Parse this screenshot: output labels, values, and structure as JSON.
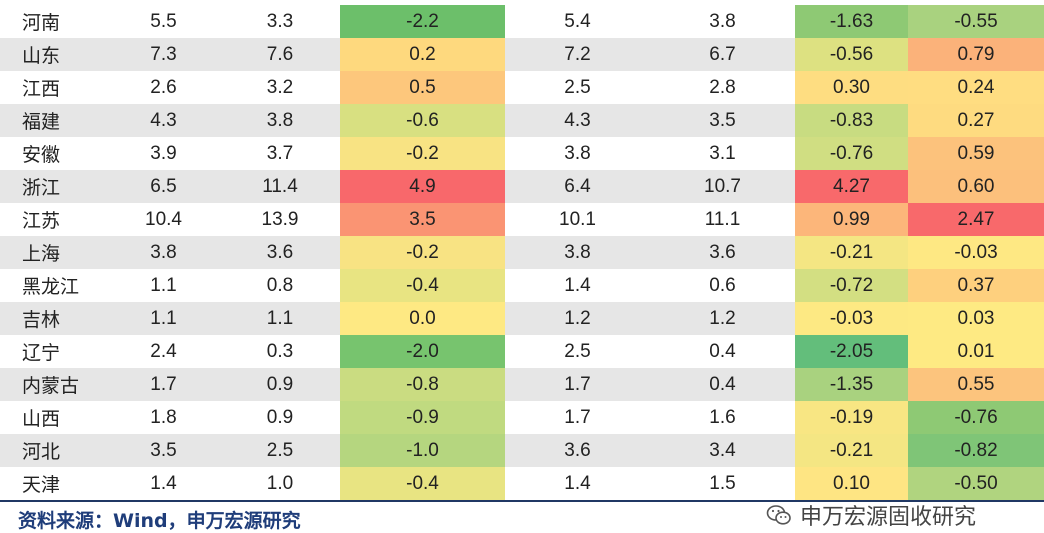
{
  "rows": [
    {
      "region": "河南",
      "c1": "5.5",
      "c2": "3.3",
      "c3": "-2.2",
      "c4": "5.4",
      "c5": "3.8",
      "c6": "-1.63",
      "c7": "-0.55"
    },
    {
      "region": "山东",
      "c1": "7.3",
      "c2": "7.6",
      "c3": "0.2",
      "c4": "7.2",
      "c5": "6.7",
      "c6": "-0.56",
      "c7": "0.79"
    },
    {
      "region": "江西",
      "c1": "2.6",
      "c2": "3.2",
      "c3": "0.5",
      "c4": "2.5",
      "c5": "2.8",
      "c6": "0.30",
      "c7": "0.24"
    },
    {
      "region": "福建",
      "c1": "4.3",
      "c2": "3.8",
      "c3": "-0.6",
      "c4": "4.3",
      "c5": "3.5",
      "c6": "-0.83",
      "c7": "0.27"
    },
    {
      "region": "安徽",
      "c1": "3.9",
      "c2": "3.7",
      "c3": "-0.2",
      "c4": "3.8",
      "c5": "3.1",
      "c6": "-0.76",
      "c7": "0.59"
    },
    {
      "region": "浙江",
      "c1": "6.5",
      "c2": "11.4",
      "c3": "4.9",
      "c4": "6.4",
      "c5": "10.7",
      "c6": "4.27",
      "c7": "0.60"
    },
    {
      "region": "江苏",
      "c1": "10.4",
      "c2": "13.9",
      "c3": "3.5",
      "c4": "10.1",
      "c5": "11.1",
      "c6": "0.99",
      "c7": "2.47"
    },
    {
      "region": "上海",
      "c1": "3.8",
      "c2": "3.6",
      "c3": "-0.2",
      "c4": "3.8",
      "c5": "3.6",
      "c6": "-0.21",
      "c7": "-0.03"
    },
    {
      "region": "黑龙江",
      "c1": "1.1",
      "c2": "0.8",
      "c3": "-0.4",
      "c4": "1.4",
      "c5": "0.6",
      "c6": "-0.72",
      "c7": "0.37"
    },
    {
      "region": "吉林",
      "c1": "1.1",
      "c2": "1.1",
      "c3": "0.0",
      "c4": "1.2",
      "c5": "1.2",
      "c6": "-0.03",
      "c7": "0.03"
    },
    {
      "region": "辽宁",
      "c1": "2.4",
      "c2": "0.3",
      "c3": "-2.0",
      "c4": "2.5",
      "c5": "0.4",
      "c6": "-2.05",
      "c7": "0.01"
    },
    {
      "region": "内蒙古",
      "c1": "1.7",
      "c2": "0.9",
      "c3": "-0.8",
      "c4": "1.7",
      "c5": "0.4",
      "c6": "-1.35",
      "c7": "0.55"
    },
    {
      "region": "山西",
      "c1": "1.8",
      "c2": "0.9",
      "c3": "-0.9",
      "c4": "1.7",
      "c5": "1.6",
      "c6": "-0.19",
      "c7": "-0.76"
    },
    {
      "region": "河北",
      "c1": "3.5",
      "c2": "2.5",
      "c3": "-1.0",
      "c4": "3.6",
      "c5": "3.4",
      "c6": "-0.21",
      "c7": "-0.82"
    },
    {
      "region": "天津",
      "c1": "1.4",
      "c2": "1.0",
      "c3": "-0.4",
      "c4": "1.4",
      "c5": "1.5",
      "c6": "0.10",
      "c7": "-0.50"
    }
  ],
  "heat_colors": {
    "c3": [
      "#6cbf6a",
      "#fed97e",
      "#fdc77c",
      "#d8e081",
      "#f8e383",
      "#f8686b",
      "#fa9473",
      "#f8e383",
      "#e8e482",
      "#fee983",
      "#77c46e",
      "#cadc81",
      "#c0da80",
      "#b5d67f",
      "#e8e482"
    ],
    "c6": [
      "#8ec974",
      "#dde181",
      "#fedd81",
      "#c8dc81",
      "#d0de82",
      "#f8696b",
      "#fcb67a",
      "#f4e683",
      "#d3df82",
      "#fde983",
      "#63be7b",
      "#a9d27f",
      "#f8e683",
      "#f4e683",
      "#fee583"
    ],
    "c7": [
      "#a9d27f",
      "#fbb27a",
      "#ffdd81",
      "#fedb80",
      "#fcc27c",
      "#fcc07c",
      "#f8696b",
      "#fee883",
      "#fed07e",
      "#feea83",
      "#feea83",
      "#fcc47d",
      "#8ec974",
      "#7fc577",
      "#b0d47f"
    ]
  },
  "footer": {
    "source": "资料来源：Wind，申万宏源研究",
    "watermark": "申万宏源固收研究"
  }
}
